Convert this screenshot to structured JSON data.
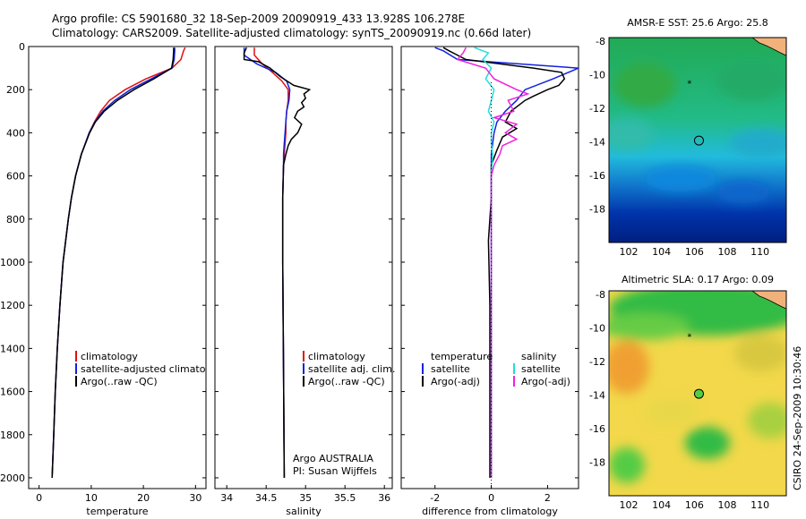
{
  "header": {
    "line1": "Argo profile: CS 5901680_32 18-Sep-2009 20090919_433 13.928S 106.278E",
    "line2": "Climatology: CARS2009. Satellite-adjusted climatology: synTS_20090919.nc (0.66d later)"
  },
  "side_text": "CSIRO 24-Sep-2009 10:30:46",
  "colors": {
    "clim": "#dd1111",
    "sat": "#1122dd",
    "argo": "#000000",
    "sat_sal": "#22dddd",
    "argo_sal": "#ee22dd"
  },
  "chart_data": [
    {
      "type": "line",
      "xlabel": "temperature",
      "ylabel": "",
      "xlim": [
        -2,
        32
      ],
      "ylim": [
        2050,
        0
      ],
      "x_ticks": [
        "0",
        "10",
        "20",
        "30"
      ],
      "y_ticks": [
        "0",
        "200",
        "400",
        "600",
        "800",
        "1000",
        "1200",
        "1400",
        "1600",
        "1800",
        "2000"
      ],
      "legend": [
        "climatology",
        "satellite-adjusted climatology",
        "Argo(..raw -QC)"
      ],
      "series": [
        {
          "name": "climatology",
          "color": "#dd1111",
          "y": [
            5,
            20,
            60,
            100,
            150,
            200,
            250,
            300,
            350,
            400,
            500,
            600,
            700,
            800,
            1000,
            1200,
            1400,
            1600,
            1800,
            2000
          ],
          "x": [
            28.0,
            27.7,
            27.2,
            25.5,
            20.5,
            16.5,
            13.5,
            11.8,
            10.6,
            9.6,
            8.1,
            7.0,
            6.2,
            5.6,
            4.6,
            4.0,
            3.5,
            3.1,
            2.8,
            2.5
          ]
        },
        {
          "name": "satellite-adjusted climatology",
          "color": "#1122dd",
          "y": [
            5,
            20,
            60,
            100,
            150,
            200,
            250,
            300,
            350,
            400,
            500,
            600,
            700,
            800,
            1000,
            1200,
            1400,
            1600,
            1800,
            2000
          ],
          "x": [
            26.0,
            26.0,
            25.9,
            25.5,
            21.5,
            17.5,
            14.5,
            12.2,
            10.7,
            9.6,
            8.1,
            7.0,
            6.2,
            5.6,
            4.6,
            4.0,
            3.5,
            3.1,
            2.8,
            2.5
          ]
        },
        {
          "name": "Argo(..raw -QC)",
          "color": "#000000",
          "y": [
            5,
            20,
            60,
            100,
            150,
            200,
            250,
            300,
            350,
            400,
            500,
            600,
            700,
            800,
            1000,
            1200,
            1400,
            1600,
            1800,
            2000
          ],
          "x": [
            25.8,
            25.8,
            25.7,
            25.4,
            22.0,
            18.2,
            15.0,
            12.5,
            10.8,
            9.7,
            8.1,
            7.0,
            6.2,
            5.6,
            4.6,
            4.0,
            3.5,
            3.1,
            2.8,
            2.5
          ]
        }
      ]
    },
    {
      "type": "line",
      "xlabel": "salinity",
      "ylabel": "",
      "xlim": [
        33.85,
        36.1
      ],
      "ylim": [
        2050,
        0
      ],
      "x_ticks": [
        "34",
        "34.5",
        "35",
        "35.5",
        "36"
      ],
      "legend": [
        "climatology",
        "satellite adj. clim.",
        "Argo(..raw -QC)"
      ],
      "annotation": [
        "Argo AUSTRALIA",
        "PI: Susan Wijffels"
      ],
      "series": [
        {
          "name": "climatology",
          "color": "#dd1111",
          "y": [
            5,
            40,
            80,
            120,
            160,
            200,
            250,
            300,
            350,
            400,
            450,
            500,
            550,
            700,
            1000,
            1500,
            2000
          ],
          "x": [
            34.35,
            34.35,
            34.45,
            34.58,
            34.7,
            34.78,
            34.78,
            34.76,
            34.75,
            34.75,
            34.74,
            34.73,
            34.72,
            34.71,
            34.71,
            34.72,
            34.73
          ]
        },
        {
          "name": "satellite adj. clim.",
          "color": "#1122dd",
          "y": [
            5,
            40,
            80,
            120,
            160,
            200,
            250,
            300,
            350,
            400,
            450,
            500,
            550,
            700,
            1000,
            1500,
            2000
          ],
          "x": [
            34.22,
            34.22,
            34.38,
            34.62,
            34.76,
            34.8,
            34.79,
            34.76,
            34.75,
            34.74,
            34.73,
            34.72,
            34.72,
            34.71,
            34.71,
            34.72,
            34.73
          ]
        },
        {
          "name": "Argo(..raw -QC)",
          "color": "#000000",
          "y": [
            5,
            30,
            60,
            70,
            100,
            140,
            180,
            200,
            220,
            240,
            260,
            280,
            300,
            330,
            360,
            400,
            430,
            460,
            500,
            550,
            700,
            1000,
            1500,
            2000
          ],
          "x": [
            34.25,
            34.22,
            34.22,
            34.4,
            34.55,
            34.68,
            34.85,
            35.05,
            34.98,
            35.0,
            34.95,
            34.98,
            34.9,
            34.86,
            34.95,
            34.9,
            34.82,
            34.78,
            34.75,
            34.72,
            34.71,
            34.71,
            34.72,
            34.73
          ]
        }
      ]
    },
    {
      "type": "line",
      "xlabel": "difference from climatology",
      "ylabel": "",
      "xlim": [
        -3.2,
        3.1
      ],
      "ylim": [
        2050,
        0
      ],
      "x_ticks": [
        "-2",
        "0",
        "2"
      ],
      "legend": [
        "temperature",
        "satellite",
        "Argo(-adj)",
        "salinity",
        "satellite",
        "Argo(-adj)"
      ],
      "series": [
        {
          "name": "temperature satellite",
          "color": "#1122dd",
          "y": [
            5,
            20,
            60,
            100,
            150,
            200,
            250,
            300,
            350,
            400,
            450,
            500,
            600,
            800,
            1200,
            1600,
            2000
          ],
          "x": [
            -2.0,
            -1.7,
            -1.2,
            3.1,
            2.2,
            1.2,
            0.9,
            0.5,
            0.2,
            0.1,
            0.05,
            0.0,
            0.0,
            0.0,
            0.0,
            0.0,
            0.0
          ]
        },
        {
          "name": "temperature Argo(-adj)",
          "color": "#000000",
          "y": [
            5,
            20,
            60,
            100,
            120,
            150,
            180,
            200,
            230,
            250,
            300,
            350,
            380,
            420,
            480,
            550,
            700,
            900,
            1200,
            1600,
            2000
          ],
          "x": [
            -1.7,
            -1.5,
            -0.9,
            1.5,
            2.5,
            2.6,
            2.4,
            2.0,
            1.5,
            1.2,
            0.7,
            0.5,
            0.9,
            0.4,
            0.2,
            0.0,
            0.0,
            -0.1,
            -0.05,
            -0.05,
            -0.05
          ]
        },
        {
          "name": "salinity satellite",
          "color": "#22dddd",
          "y": [
            5,
            30,
            60,
            100,
            150,
            200,
            250,
            300,
            350,
            400,
            450,
            500,
            600,
            800,
            1200,
            1600,
            2000
          ],
          "x": [
            -0.6,
            -0.1,
            -0.3,
            0.0,
            -0.2,
            0.1,
            0.0,
            -0.1,
            0.1,
            0.0,
            0.0,
            0.05,
            0.0,
            0.0,
            0.0,
            0.0,
            0.0
          ]
        },
        {
          "name": "salinity Argo(-adj)",
          "color": "#ee22dd",
          "y": [
            5,
            30,
            60,
            100,
            150,
            200,
            220,
            250,
            300,
            330,
            360,
            400,
            430,
            460,
            500,
            550,
            600,
            800,
            1200,
            1600,
            2000
          ],
          "x": [
            -0.9,
            -1.0,
            -1.2,
            -0.2,
            0.1,
            0.9,
            1.3,
            0.6,
            0.8,
            0.1,
            0.9,
            0.5,
            0.9,
            0.4,
            0.3,
            0.1,
            0.0,
            0.0,
            0.0,
            0.0,
            0.0
          ]
        }
      ]
    },
    {
      "type": "heatmap",
      "title": "AMSR-E SST: 25.6 Argo: 25.8",
      "xlim": [
        100.8,
        111.6
      ],
      "ylim": [
        -20,
        -7.8
      ],
      "x_ticks": [
        "102",
        "104",
        "106",
        "108",
        "110"
      ],
      "y_ticks": [
        "-8",
        "-10",
        "-12",
        "-14",
        "-16",
        "-18"
      ],
      "float_position": [
        106.28,
        -13.93
      ],
      "prev_position": [
        105.7,
        -10.5
      ]
    },
    {
      "type": "heatmap",
      "title": "Altimetric SLA: 0.17 Argo: 0.09",
      "xlim": [
        100.8,
        111.6
      ],
      "ylim": [
        -20,
        -7.8
      ],
      "x_ticks": [
        "102",
        "104",
        "106",
        "108",
        "110"
      ],
      "y_ticks": [
        "-8",
        "-10",
        "-12",
        "-14",
        "-16",
        "-18"
      ],
      "float_position": [
        106.28,
        -13.93
      ],
      "prev_position": [
        105.7,
        -10.5
      ]
    }
  ]
}
